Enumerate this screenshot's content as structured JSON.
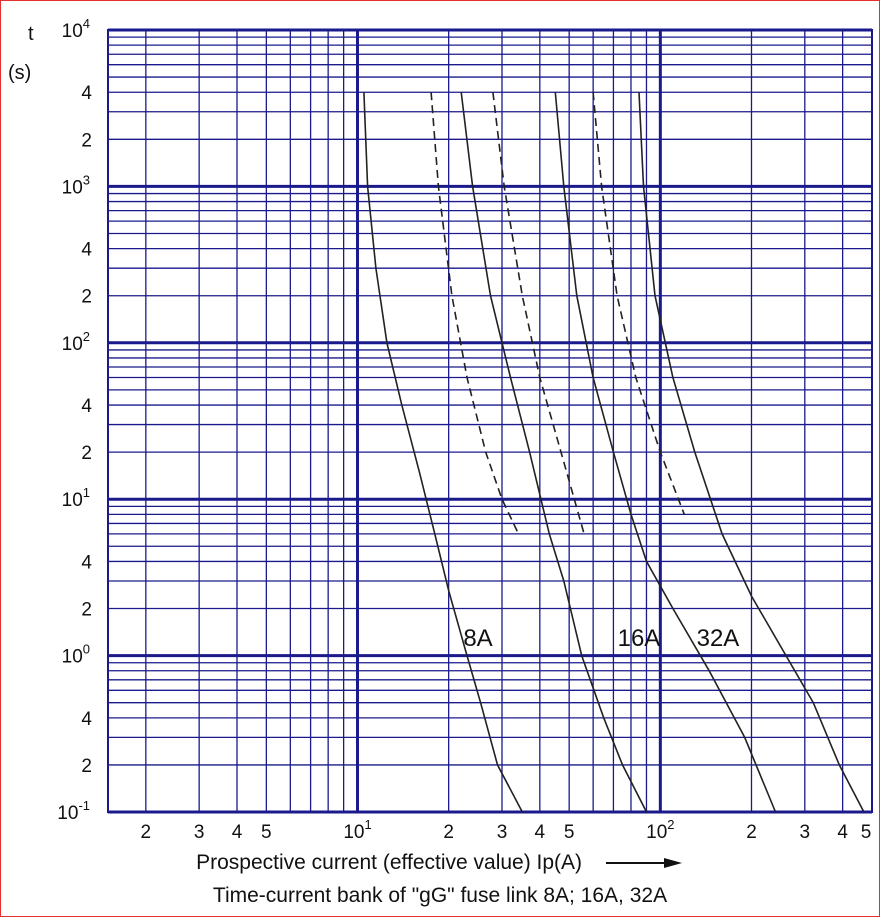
{
  "chart_data": {
    "type": "line",
    "title": "Time-current  bank of \"gG\" fuse link 8A; 16A, 32A",
    "xlabel": "Prospective current (effective value)  Ip(A)",
    "ylabel_top": "t",
    "ylabel_unit": "(s)",
    "x_scale": "log",
    "y_scale": "log",
    "xlim": [
      1.5,
      500
    ],
    "ylim": [
      0.1,
      10000
    ],
    "grid": true,
    "x_ticks": [
      {
        "value": 2,
        "base": "2",
        "sup": ""
      },
      {
        "value": 3,
        "base": "3",
        "sup": ""
      },
      {
        "value": 4,
        "base": "4",
        "sup": ""
      },
      {
        "value": 5,
        "base": "5",
        "sup": ""
      },
      {
        "value": 10,
        "base": "10",
        "sup": "1"
      },
      {
        "value": 20,
        "base": "2",
        "sup": ""
      },
      {
        "value": 30,
        "base": "3",
        "sup": ""
      },
      {
        "value": 40,
        "base": "4",
        "sup": ""
      },
      {
        "value": 50,
        "base": "5",
        "sup": ""
      },
      {
        "value": 100,
        "base": "10",
        "sup": "2"
      },
      {
        "value": 200,
        "base": "2",
        "sup": ""
      },
      {
        "value": 300,
        "base": "3",
        "sup": ""
      },
      {
        "value": 400,
        "base": "4",
        "sup": ""
      },
      {
        "value": 500,
        "base": "5",
        "sup": ""
      }
    ],
    "y_ticks": [
      {
        "value": 10000,
        "base": "10",
        "sup": "4"
      },
      {
        "value": 4000,
        "base": "4",
        "sup": ""
      },
      {
        "value": 2000,
        "base": "2",
        "sup": ""
      },
      {
        "value": 1000,
        "base": "10",
        "sup": "3"
      },
      {
        "value": 400,
        "base": "4",
        "sup": ""
      },
      {
        "value": 200,
        "base": "2",
        "sup": ""
      },
      {
        "value": 100,
        "base": "10",
        "sup": "2"
      },
      {
        "value": 40,
        "base": "4",
        "sup": ""
      },
      {
        "value": 20,
        "base": "2",
        "sup": ""
      },
      {
        "value": 10,
        "base": "10",
        "sup": "1"
      },
      {
        "value": 4,
        "base": "4",
        "sup": ""
      },
      {
        "value": 2,
        "base": "2",
        "sup": ""
      },
      {
        "value": 1,
        "base": "10",
        "sup": "0"
      },
      {
        "value": 0.4,
        "base": "4",
        "sup": ""
      },
      {
        "value": 0.2,
        "base": "2",
        "sup": ""
      },
      {
        "value": 0.1,
        "base": "10",
        "sup": "-1"
      }
    ],
    "series": [
      {
        "name": "8A",
        "style": "solid",
        "points": [
          [
            10.5,
            4000
          ],
          [
            10.8,
            1000
          ],
          [
            11.5,
            300
          ],
          [
            12.5,
            100
          ],
          [
            14,
            40
          ],
          [
            16,
            15
          ],
          [
            18,
            6
          ],
          [
            20,
            2.6
          ],
          [
            23,
            1
          ],
          [
            25.5,
            0.5
          ],
          [
            29,
            0.2
          ],
          [
            35,
            0.1
          ]
        ]
      },
      {
        "name": "8A",
        "style": "dashed",
        "points": [
          [
            17.5,
            4000
          ],
          [
            18.5,
            1000
          ],
          [
            20.5,
            200
          ],
          [
            23,
            60
          ],
          [
            26.5,
            20
          ],
          [
            30,
            10
          ],
          [
            34,
            6
          ]
        ]
      },
      {
        "name": "16A",
        "style": "solid",
        "points": [
          [
            22,
            4000
          ],
          [
            24,
            1000
          ],
          [
            27.5,
            200
          ],
          [
            32,
            60
          ],
          [
            37,
            20
          ],
          [
            43,
            6
          ],
          [
            48,
            3
          ],
          [
            55,
            1
          ],
          [
            65,
            0.4
          ],
          [
            75,
            0.2
          ],
          [
            90,
            0.1
          ]
        ]
      },
      {
        "name": "16A",
        "style": "dashed",
        "points": [
          [
            28,
            4000
          ],
          [
            30.5,
            1000
          ],
          [
            35,
            200
          ],
          [
            40,
            60
          ],
          [
            47,
            20
          ],
          [
            56,
            6
          ]
        ]
      },
      {
        "name": "32A",
        "style": "solid",
        "points": [
          [
            45,
            4000
          ],
          [
            48,
            1000
          ],
          [
            53,
            200
          ],
          [
            60,
            60
          ],
          [
            70,
            20
          ],
          [
            80,
            8
          ],
          [
            90,
            4
          ],
          [
            110,
            2
          ],
          [
            145,
            0.8
          ],
          [
            190,
            0.3
          ],
          [
            240,
            0.1
          ]
        ]
      },
      {
        "name": "32A",
        "style": "dashed",
        "points": [
          [
            60,
            4000
          ],
          [
            64,
            1000
          ],
          [
            72,
            200
          ],
          [
            83,
            60
          ],
          [
            100,
            20
          ],
          [
            120,
            8
          ]
        ]
      },
      {
        "name": "32A",
        "style": "solid",
        "points": [
          [
            85,
            4000
          ],
          [
            88,
            1000
          ],
          [
            96,
            200
          ],
          [
            110,
            60
          ],
          [
            130,
            20
          ],
          [
            160,
            6
          ],
          [
            200,
            2.4
          ],
          [
            260,
            1
          ],
          [
            320,
            0.5
          ],
          [
            390,
            0.2
          ],
          [
            470,
            0.1
          ]
        ]
      }
    ],
    "annotations": [
      {
        "text": "8A",
        "x": 25,
        "y": 1.3
      },
      {
        "text": "16A",
        "x": 85,
        "y": 1.3
      },
      {
        "text": "32A",
        "x": 155,
        "y": 1.3
      }
    ]
  }
}
